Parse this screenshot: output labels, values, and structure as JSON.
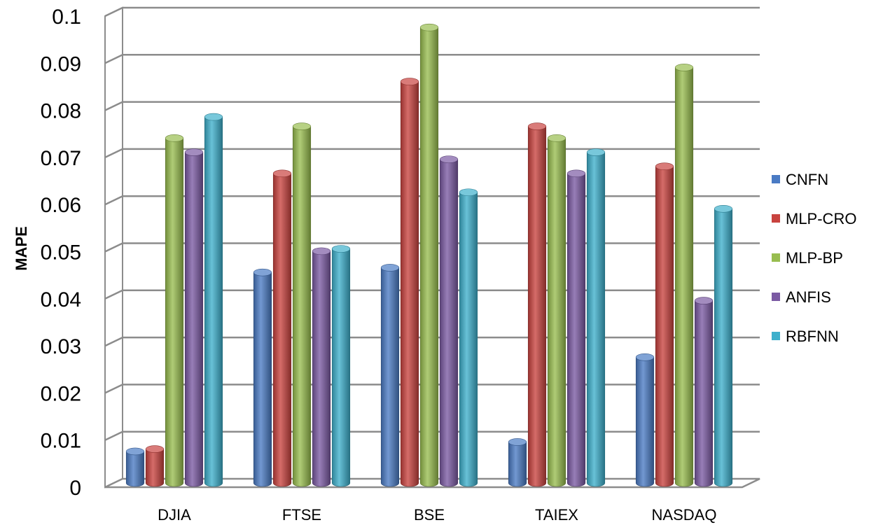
{
  "chart_data": {
    "type": "bar",
    "title": "",
    "xlabel": "",
    "ylabel": "MAPE",
    "ylim": [
      0,
      0.1
    ],
    "yticks": [
      "0",
      "0.01",
      "0.02",
      "0.03",
      "0.04",
      "0.05",
      "0.06",
      "0.07",
      "0.08",
      "0.09",
      "0.1"
    ],
    "grid": true,
    "legend_position": "right",
    "categories": [
      "DJIA",
      "FTSE",
      "BSE",
      "TAIEX",
      "NASDAQ"
    ],
    "series": [
      {
        "name": "CNFN",
        "color": "#4a7bc4",
        "values": [
          0.007,
          0.045,
          0.046,
          0.009,
          0.027
        ]
      },
      {
        "name": "MLP-CRO",
        "color": "#c9433f",
        "values": [
          0.0075,
          0.066,
          0.0855,
          0.076,
          0.0675
        ]
      },
      {
        "name": "MLP-BP",
        "color": "#98bd4f",
        "values": [
          0.0735,
          0.076,
          0.097,
          0.0735,
          0.0885
        ]
      },
      {
        "name": "ANFIS",
        "color": "#7b5aa3",
        "values": [
          0.0705,
          0.0495,
          0.069,
          0.066,
          0.039
        ]
      },
      {
        "name": "RBFNN",
        "color": "#3eb0cc",
        "values": [
          0.078,
          0.05,
          0.062,
          0.0705,
          0.0585
        ]
      }
    ]
  }
}
